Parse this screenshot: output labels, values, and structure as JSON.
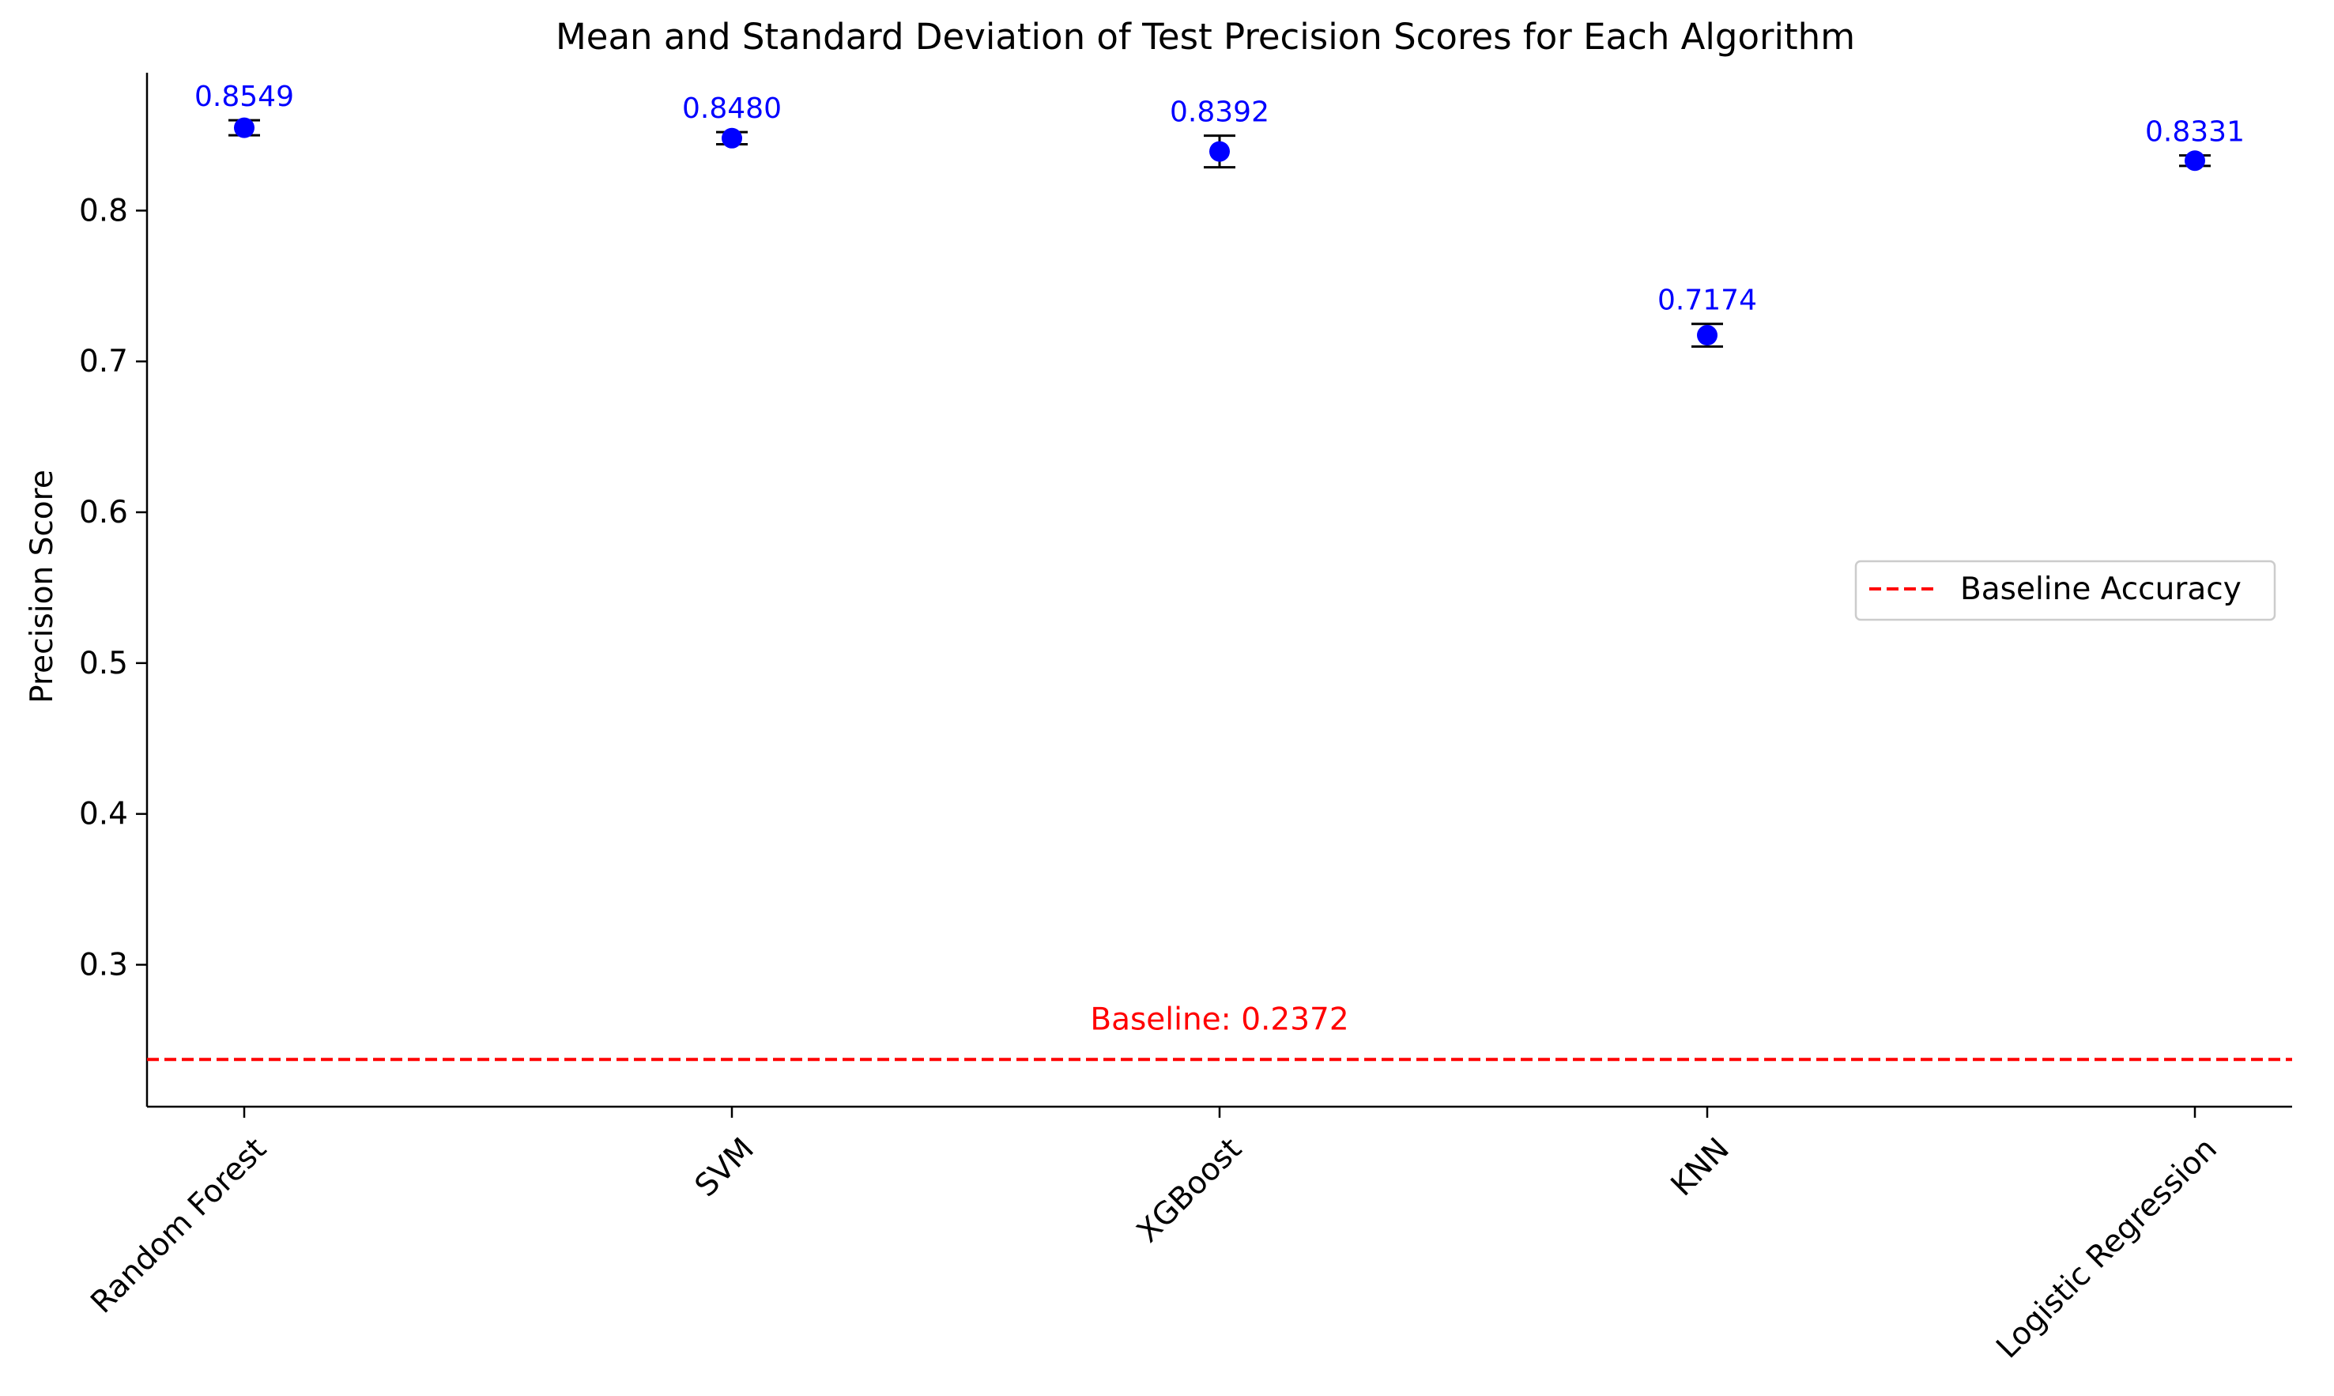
{
  "chart_data": {
    "type": "scatter",
    "title": "Mean and Standard Deviation of Test Precision Scores for Each Algorithm",
    "xlabel": "",
    "ylabel": "Precision Score",
    "categories": [
      "Random Forest",
      "SVM",
      "XGBoost",
      "KNN",
      "Logistic Regression"
    ],
    "means": [
      0.8549,
      0.848,
      0.8392,
      0.7174,
      0.8331
    ],
    "stds": [
      0.005,
      0.004,
      0.0105,
      0.0075,
      0.0035
    ],
    "value_labels": [
      "0.8549",
      "0.8480",
      "0.8392",
      "0.7174",
      "0.8331"
    ],
    "ylim": [
      0.2059,
      0.8914
    ],
    "yticks": [
      0.3,
      0.4,
      0.5,
      0.6,
      0.7,
      0.8
    ],
    "ytick_labels": [
      "0.3",
      "0.4",
      "0.5",
      "0.6",
      "0.7",
      "0.8"
    ],
    "baseline": {
      "value": 0.2372,
      "annotation": "Baseline: 0.2372",
      "legend_label": "Baseline Accuracy"
    },
    "legend_position": "center-right",
    "grid": false,
    "colors": {
      "marker": "#0000ff",
      "value_label": "#0000ff",
      "errorbar": "#000000",
      "baseline": "#ff0000"
    }
  }
}
